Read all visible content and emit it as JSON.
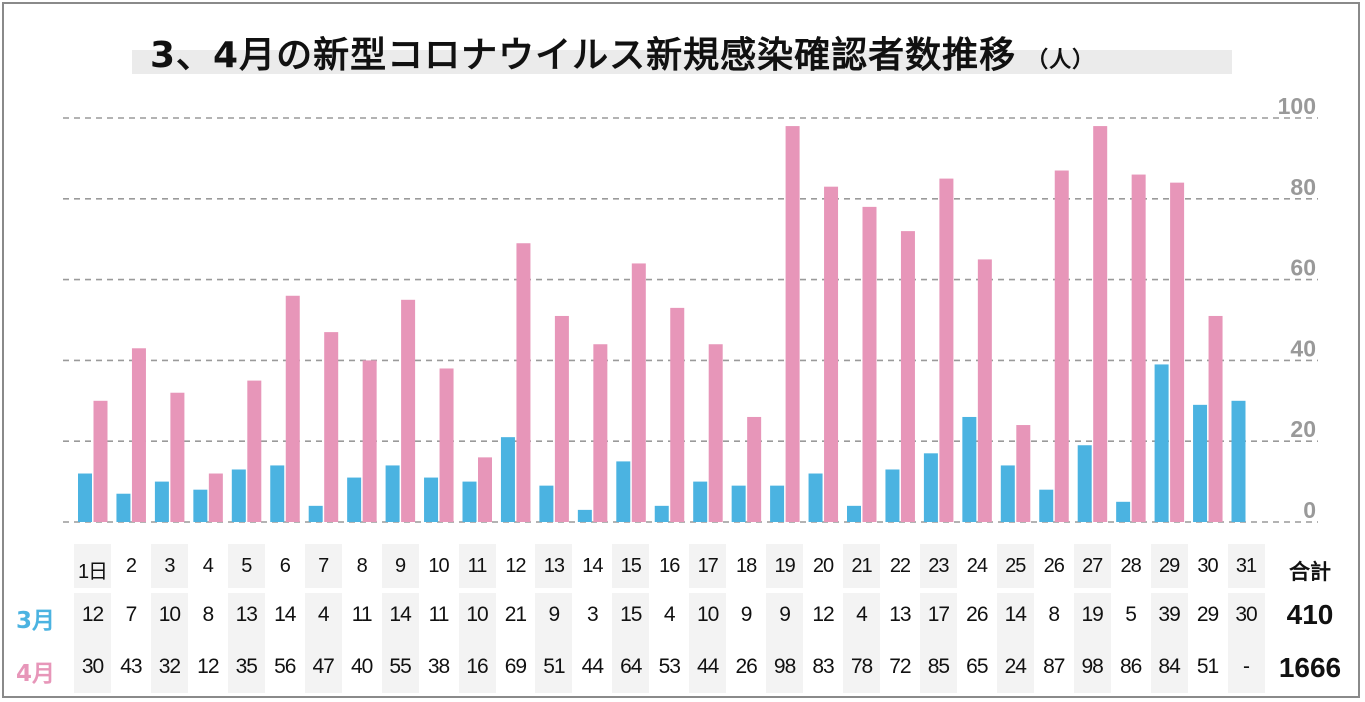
{
  "title": "3、4月の新型コロナウイルス新規感染確認者数推移",
  "title_unit": "（人）",
  "colors": {
    "march": "#4bb3e1",
    "april": "#e796b9",
    "grid": "#9a9a9a",
    "axis_text": "#999999"
  },
  "table": {
    "total_header": "合計",
    "day_suffix": "日",
    "march_label": "3月",
    "april_label": "4月",
    "march_total": "410",
    "april_total": "1666",
    "april_day31": "-"
  },
  "chart_data": {
    "type": "bar",
    "title": "3、4月の新型コロナウイルス新規感染確認者数推移（人）",
    "xlabel": "",
    "ylabel": "",
    "ylim": [
      0,
      100
    ],
    "yticks": [
      0,
      20,
      40,
      60,
      80,
      100
    ],
    "y_axis_side": "right",
    "grid": true,
    "gridline_style": "dashed",
    "categories": [
      "1",
      "2",
      "3",
      "4",
      "5",
      "6",
      "7",
      "8",
      "9",
      "10",
      "11",
      "12",
      "13",
      "14",
      "15",
      "16",
      "17",
      "18",
      "19",
      "20",
      "21",
      "22",
      "23",
      "24",
      "25",
      "26",
      "27",
      "28",
      "29",
      "30",
      "31"
    ],
    "series": [
      {
        "name": "3月",
        "values": [
          12,
          7,
          10,
          8,
          13,
          14,
          4,
          11,
          14,
          11,
          10,
          21,
          9,
          3,
          15,
          4,
          10,
          9,
          9,
          12,
          4,
          13,
          17,
          26,
          14,
          8,
          19,
          5,
          39,
          29,
          30
        ]
      },
      {
        "name": "4月",
        "values": [
          30,
          43,
          32,
          12,
          35,
          56,
          47,
          40,
          55,
          38,
          16,
          69,
          51,
          44,
          64,
          53,
          44,
          26,
          98,
          83,
          78,
          72,
          85,
          65,
          24,
          87,
          98,
          86,
          84,
          51,
          null
        ]
      }
    ],
    "totals": {
      "3月": 410,
      "4月": 1666
    }
  }
}
